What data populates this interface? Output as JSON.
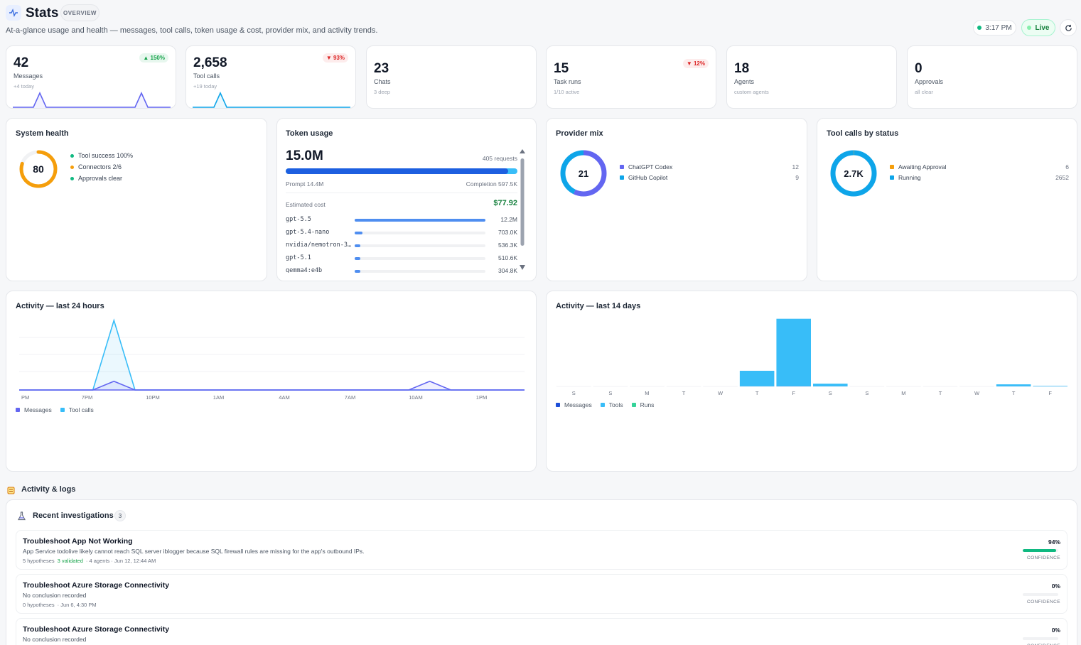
{
  "header": {
    "title": "Stats",
    "chip": "OVERVIEW",
    "subtitle": "At-a-glance usage and health — messages, tool calls, token usage & cost, provider mix, and activity trends.",
    "time": "3:17 PM",
    "live": "Live",
    "refresh_icon": "refresh-icon"
  },
  "stats": [
    {
      "value": "42",
      "label": "Messages",
      "sub": "+4 today",
      "badge": "▲ 150%",
      "trend": "up"
    },
    {
      "value": "2,658",
      "label": "Tool calls",
      "sub": "+19 today",
      "badge": "▼ 93%",
      "trend": "down"
    },
    {
      "value": "23",
      "label": "Chats",
      "sub": "3 deep",
      "badge": "",
      "trend": ""
    },
    {
      "value": "15",
      "label": "Task runs",
      "sub": "1/10 active",
      "badge": "▼ 12%",
      "trend": "down"
    },
    {
      "value": "18",
      "label": "Agents",
      "sub": "custom agents",
      "badge": "",
      "trend": ""
    },
    {
      "value": "0",
      "label": "Approvals",
      "sub": "all clear",
      "badge": "",
      "trend": ""
    }
  ],
  "health": {
    "title": "System health",
    "score": "80",
    "score_fraction": 0.8,
    "items": [
      {
        "label": "Tool success 100%",
        "color": "#10b981"
      },
      {
        "label": "Connectors 2/6",
        "color": "#f59e0b"
      },
      {
        "label": "Approvals clear",
        "color": "#10b981"
      }
    ]
  },
  "tokens": {
    "title": "Token usage",
    "total": "15.0M",
    "requests": "405 requests",
    "prompt": "Prompt 14.4M",
    "completion": "Completion 597.5K",
    "prompt_fraction": 0.96,
    "cost_label": "Estimated cost",
    "cost": "$77.92",
    "models": [
      {
        "name": "gpt-5.5",
        "value": "12.2M",
        "fraction": 1.0
      },
      {
        "name": "gpt-5.4-nano",
        "value": "703.0K",
        "fraction": 0.058
      },
      {
        "name": "nvidia/nemotron-3…",
        "value": "536.3K",
        "fraction": 0.044
      },
      {
        "name": "gpt-5.1",
        "value": "510.6K",
        "fraction": 0.042
      },
      {
        "name": "gemma4:e4b",
        "value": "304.8K",
        "fraction": 0.025
      }
    ]
  },
  "provider": {
    "title": "Provider mix",
    "total": "21",
    "items": [
      {
        "label": "ChatGPT Codex",
        "value": "12",
        "color": "#6366f1"
      },
      {
        "label": "GitHub Copilot",
        "value": "9",
        "color": "#0ea5e9"
      }
    ]
  },
  "toolstatus": {
    "title": "Tool calls by status",
    "total": "2.7K",
    "items": [
      {
        "label": "Awaiting Approval",
        "value": "6",
        "color": "#f59e0b"
      },
      {
        "label": "Running",
        "value": "2652",
        "color": "#0ea5e9"
      }
    ]
  },
  "chart_data": [
    {
      "type": "area",
      "title": "Activity — last 24 hours",
      "x_ticks": [
        "PM",
        "7PM",
        "10PM",
        "1AM",
        "4AM",
        "7AM",
        "10AM",
        "1PM"
      ],
      "series": [
        {
          "name": "Messages",
          "color": "#6366f1",
          "values": [
            0,
            0,
            0,
            0,
            1,
            0,
            0,
            0,
            0,
            0,
            0,
            0,
            0,
            0,
            0,
            0,
            0,
            0,
            0,
            1,
            0,
            0,
            0,
            0
          ]
        },
        {
          "name": "Tool calls",
          "color": "#38bdf8",
          "values": [
            0,
            0,
            0,
            0,
            8,
            0,
            0,
            0,
            0,
            0,
            0,
            0,
            0,
            0,
            0,
            0,
            0,
            0,
            0,
            0,
            0,
            0,
            0,
            0
          ]
        }
      ],
      "legend": "bottom-left"
    },
    {
      "type": "bar",
      "title": "Activity — last 14 days",
      "categories": [
        "S",
        "S",
        "M",
        "T",
        "W",
        "T",
        "F",
        "S",
        "S",
        "M",
        "T",
        "W",
        "T",
        "F"
      ],
      "series": [
        {
          "name": "Messages",
          "color": "#1d4ed8",
          "values": [
            0,
            0,
            0,
            0,
            0,
            2,
            3,
            1,
            0,
            0,
            0,
            0,
            1,
            0
          ]
        },
        {
          "name": "Tools",
          "color": "#38bdf8",
          "values": [
            0,
            0,
            0,
            0,
            0,
            230,
            1000,
            40,
            0,
            0,
            0,
            0,
            30,
            8
          ]
        },
        {
          "name": "Runs",
          "color": "#34d399",
          "values": [
            0,
            0,
            0,
            0,
            0,
            0,
            0,
            0,
            0,
            0,
            0,
            0,
            0,
            0
          ]
        }
      ],
      "legend": "bottom-left"
    }
  ],
  "logs": {
    "title": "Activity & logs",
    "recent_title": "Recent investigations",
    "recent_count": "3",
    "items": [
      {
        "title": "Troubleshoot App Not Working",
        "desc": "App Service todolive likely cannot reach SQL server iblogger because SQL firewall rules are missing for the app's outbound IPs.",
        "meta": "5 hypotheses",
        "validated": "3 validated",
        "meta2": "· 4 agents · Jun 12, 12:44 AM",
        "confidence": "94%",
        "confidence_fraction": 0.94,
        "conf_label": "CONFIDENCE"
      },
      {
        "title": "Troubleshoot Azure Storage Connectivity",
        "desc": "No conclusion recorded",
        "meta": "0 hypotheses",
        "validated": "",
        "meta2": "· Jun 6, 4:30 PM",
        "confidence": "0%",
        "confidence_fraction": 0,
        "conf_label": "CONFIDENCE"
      },
      {
        "title": "Troubleshoot Azure Storage Connectivity",
        "desc": "No conclusion recorded",
        "meta": "",
        "validated": "",
        "meta2": "",
        "confidence": "0%",
        "confidence_fraction": 0,
        "conf_label": "CONFIDENCE"
      }
    ]
  }
}
